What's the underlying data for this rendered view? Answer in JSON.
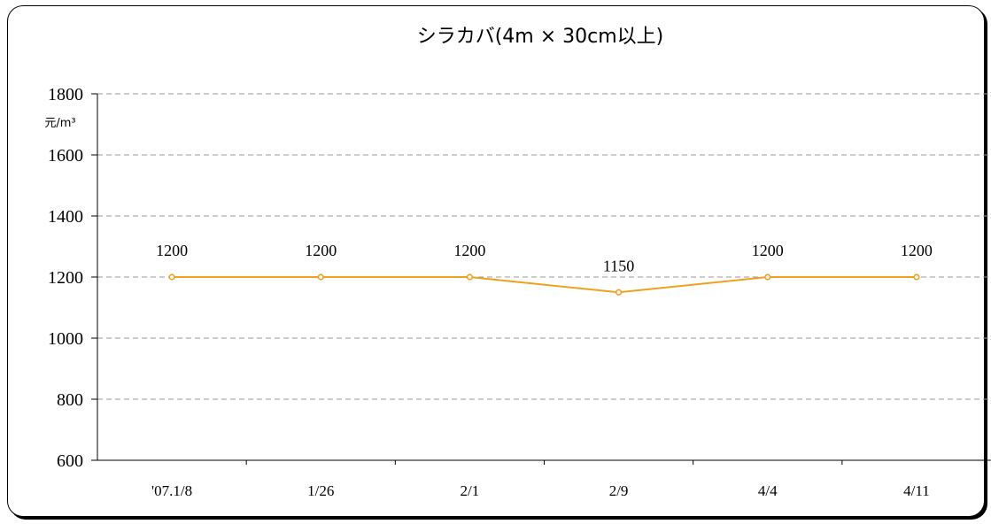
{
  "chart_data": {
    "type": "line",
    "title": "シラカバ(4m × 30cm以上)",
    "ylabel": "元/m³",
    "ylim": [
      600,
      1800
    ],
    "yticks": [
      600,
      800,
      1000,
      1200,
      1400,
      1600,
      1800
    ],
    "categories": [
      "'07.1/8",
      "1/26",
      "2/1",
      "2/9",
      "4/4",
      "4/11"
    ],
    "series": [
      {
        "values": [
          1200,
          1200,
          1200,
          1150,
          1200,
          1200
        ]
      }
    ],
    "data_labels": [
      "1200",
      "1200",
      "1200",
      "1150",
      "1200",
      "1200"
    ],
    "grid": true,
    "line_color": "#f0a020"
  }
}
